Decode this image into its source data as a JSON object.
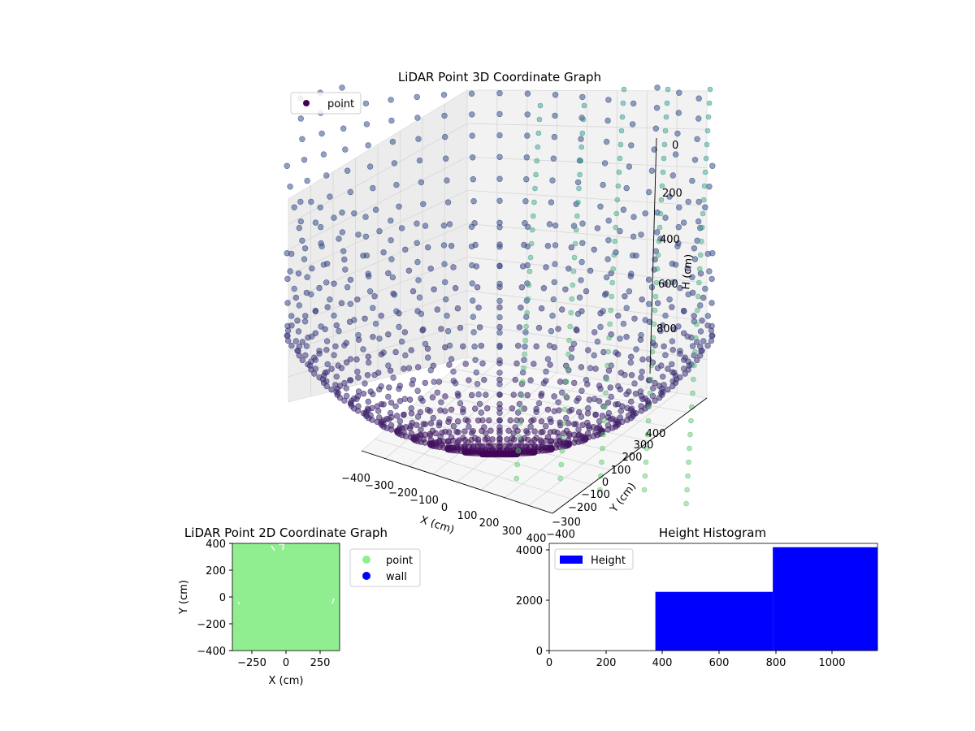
{
  "chart_data": [
    {
      "type": "scatter",
      "projection": "3d",
      "title": "LiDAR Point 3D Coordinate Graph",
      "xlabel": "X (cm)",
      "ylabel": "Y (cm)",
      "zlabel": "H (cm)",
      "legend": {
        "placement": "top-left",
        "entries": [
          "point"
        ]
      },
      "x_ticks": [
        "−400",
        "−300",
        "−200",
        "−100",
        "0",
        "100",
        "200",
        "300",
        "400"
      ],
      "y_ticks": [
        "−400",
        "−300",
        "−200",
        "−100",
        "0",
        "100",
        "200",
        "300",
        "400"
      ],
      "z_ticks": [
        "0",
        "200",
        "400",
        "600",
        "800"
      ],
      "xlim": [
        -400,
        400
      ],
      "ylim": [
        -400,
        400
      ],
      "zlim": [
        0,
        1000
      ],
      "z_axis_inverted": true,
      "colormap": "viridis",
      "colors": {
        "deep": "#440154",
        "mid": "#3b528b",
        "light": "#21918c",
        "pale": "#5ec962"
      },
      "series": [
        {
          "name": "point",
          "shape": "spherical point cloud, density decreasing away from the bottom",
          "approx_range_cm": [
            -400,
            400
          ],
          "color": "#440154"
        }
      ]
    },
    {
      "type": "scatter",
      "title": "LiDAR Point 2D Coordinate Graph",
      "xlabel": "X (cm)",
      "ylabel": "Y (cm)",
      "x_ticks": [
        "−250",
        "0",
        "250"
      ],
      "y_ticks": [
        "400",
        "200",
        "0",
        "−200",
        "−400"
      ],
      "xlim": [
        -400,
        400
      ],
      "ylim": [
        -400,
        400
      ],
      "legend": {
        "placement": "outside-right",
        "entries": [
          "point",
          "wall"
        ]
      },
      "series": [
        {
          "name": "point",
          "color": "#90ee90",
          "coverage": "fills the whole plot area"
        },
        {
          "name": "wall",
          "color": "#0000ff"
        }
      ]
    },
    {
      "type": "bar",
      "title": "Height Histogram",
      "legend": {
        "placement": "top-left",
        "entries": [
          "Height"
        ]
      },
      "x_ticks": [
        "0",
        "200",
        "400",
        "600",
        "800",
        "1000"
      ],
      "y_ticks": [
        "0",
        "2000",
        "4000"
      ],
      "xlim": [
        0,
        1160
      ],
      "ylim": [
        0,
        4200
      ],
      "series": [
        {
          "name": "Height",
          "color": "#0000ff"
        }
      ],
      "bins": [
        {
          "from": 0,
          "to": 375,
          "value": 0
        },
        {
          "from": 375,
          "to": 790,
          "value": 2300
        },
        {
          "from": 790,
          "to": 1160,
          "value": 4050
        }
      ]
    }
  ]
}
